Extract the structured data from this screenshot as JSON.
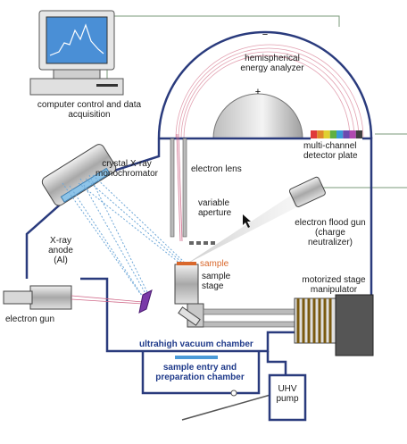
{
  "labels": {
    "computer": "computer control and data acquisition",
    "analyzer": "hemispherical energy analyzer",
    "plus": "+",
    "minus": "−",
    "detector": "multi-channel detector plate",
    "monochromator": "crystal X-ray monochromator",
    "lens": "electron lens",
    "aperture": "variable aperture",
    "flood_gun": "electron flood gun (charge neutralizer)",
    "anode": "X-ray anode (Al)",
    "sample": "sample",
    "stage": "sample stage",
    "manipulator": "motorized stage manipulator",
    "electron_gun": "electron gun",
    "chamber": "ultrahigh vacuum chamber",
    "prep": "sample entry and preparation chamber",
    "pump": "UHV pump"
  },
  "colors": {
    "chamber_outline": "#2a3b7d",
    "cable": "#7a9a7a",
    "orbit": "#e2a0b0",
    "xray": "#6fa8d8",
    "sample": "#d9682c",
    "detector": [
      "#e03a3a",
      "#e08a2a",
      "#e0d030",
      "#60b040",
      "#3a9ad8",
      "#6a4ab0",
      "#b04ab0",
      "#404040"
    ]
  }
}
